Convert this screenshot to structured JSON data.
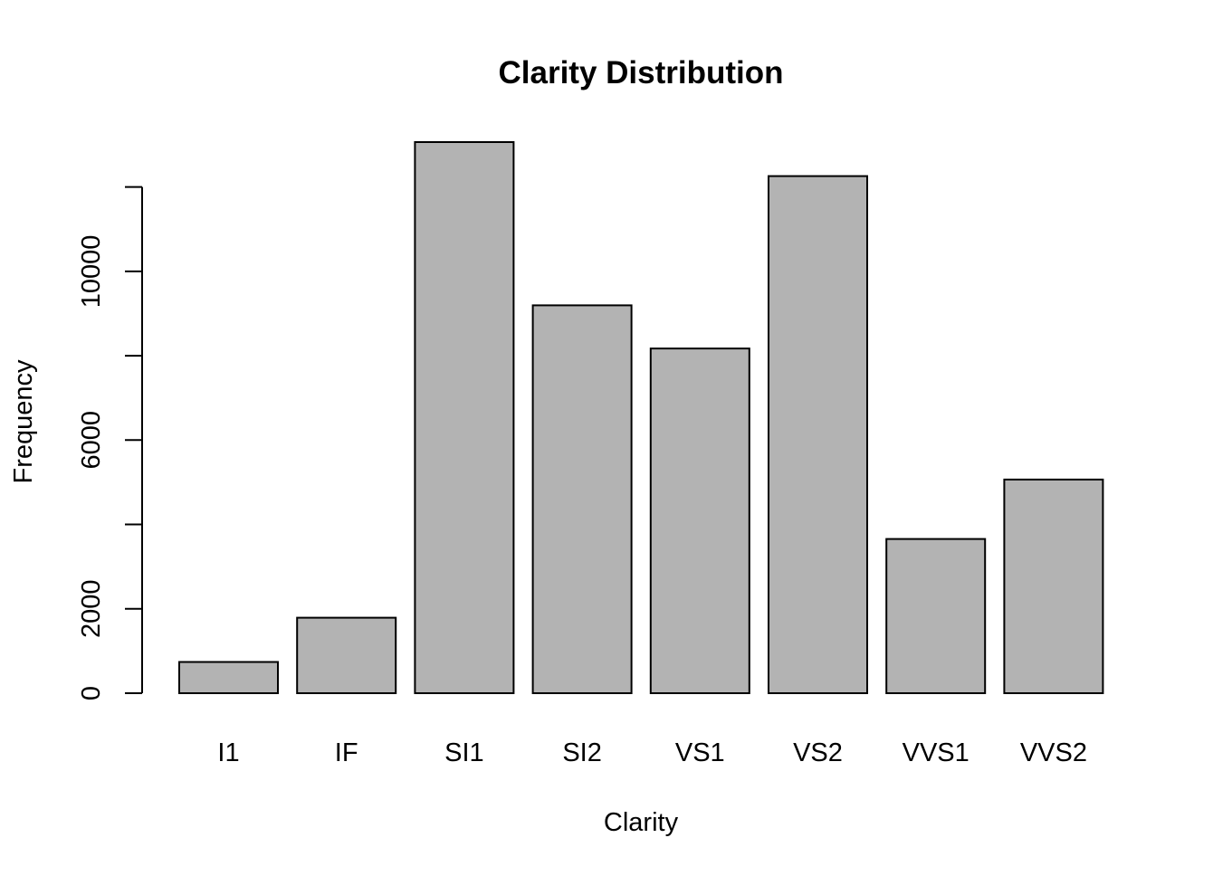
{
  "chart_data": {
    "type": "bar",
    "title": "Clarity Distribution",
    "xlabel": "Clarity",
    "ylabel": "Frequency",
    "categories": [
      "I1",
      "IF",
      "SI1",
      "SI2",
      "VS1",
      "VS2",
      "VVS1",
      "VVS2"
    ],
    "values": [
      741,
      1790,
      13065,
      9194,
      8171,
      12258,
      3655,
      5066
    ],
    "yticks": [
      0,
      2000,
      4000,
      6000,
      8000,
      10000,
      12000
    ],
    "ytick_labels": [
      "0",
      "2000",
      "",
      "6000",
      "",
      "10000",
      ""
    ],
    "ylim": [
      0,
      13065
    ],
    "bar_fill": "#b3b3b3",
    "bar_stroke": "#000000",
    "grid": false,
    "legend": "none"
  }
}
